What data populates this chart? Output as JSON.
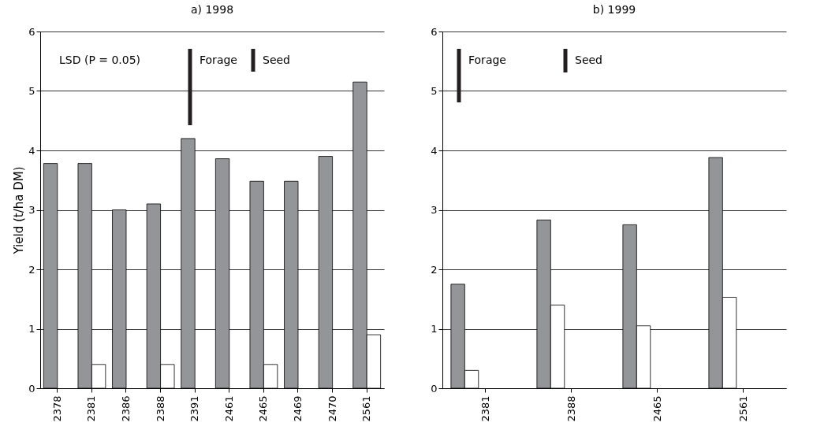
{
  "chart_data": [
    {
      "type": "bar",
      "title": "a) 1998",
      "ylabel": "Yield (t/ha DM)",
      "categories": [
        "2378",
        "2381",
        "2386",
        "2388",
        "2391",
        "2461",
        "2465",
        "2469",
        "2470",
        "2561"
      ],
      "series": [
        {
          "color": "#939598",
          "values": [
            3.78,
            3.78,
            3.0,
            3.1,
            4.2,
            3.86,
            3.48,
            3.48,
            3.9,
            5.15
          ]
        },
        {
          "color": "#ffffff",
          "values": [
            null,
            0.4,
            null,
            0.4,
            null,
            null,
            0.4,
            null,
            null,
            0.9
          ]
        }
      ],
      "ylim": [
        0,
        6
      ],
      "yticks": [
        0,
        1,
        2,
        3,
        4,
        5,
        6
      ],
      "grid": "y",
      "legend": false,
      "annotations": [
        "LSD (P = 0.05)",
        "Forage",
        "Seed"
      ]
    },
    {
      "type": "bar",
      "title": "b) 1999",
      "categories": [
        "2381",
        "2388",
        "2465",
        "2561"
      ],
      "series": [
        {
          "color": "#939598",
          "values": [
            1.75,
            2.83,
            2.75,
            3.88
          ]
        },
        {
          "color": "#ffffff",
          "values": [
            0.3,
            1.4,
            1.05,
            1.53
          ]
        }
      ],
      "ylim": [
        0,
        6
      ],
      "yticks": [
        0,
        1,
        2,
        3,
        4,
        5,
        6
      ],
      "grid": "y",
      "legend": false,
      "annotations": [
        "Forage",
        "Seed"
      ]
    }
  ]
}
